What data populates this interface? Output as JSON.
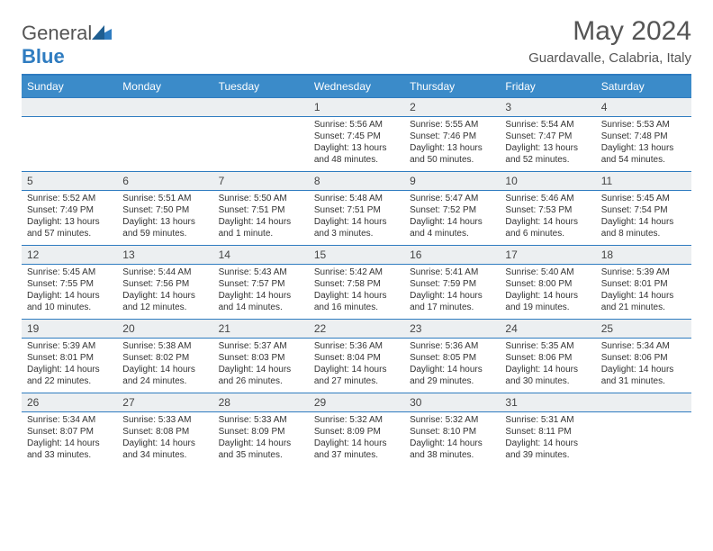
{
  "brand": {
    "part1": "General",
    "part2": "Blue"
  },
  "title": "May 2024",
  "location": "Guardavalle, Calabria, Italy",
  "colors": {
    "header_bg": "#3b8bc9",
    "rule": "#2f7cc0",
    "daynum_bg": "#eceff1",
    "text": "#333333",
    "title_text": "#555555"
  },
  "day_headers": [
    "Sunday",
    "Monday",
    "Tuesday",
    "Wednesday",
    "Thursday",
    "Friday",
    "Saturday"
  ],
  "weeks": [
    [
      null,
      null,
      null,
      {
        "n": "1",
        "sunrise": "5:56 AM",
        "sunset": "7:45 PM",
        "dl1": "Daylight: 13 hours",
        "dl2": "and 48 minutes."
      },
      {
        "n": "2",
        "sunrise": "5:55 AM",
        "sunset": "7:46 PM",
        "dl1": "Daylight: 13 hours",
        "dl2": "and 50 minutes."
      },
      {
        "n": "3",
        "sunrise": "5:54 AM",
        "sunset": "7:47 PM",
        "dl1": "Daylight: 13 hours",
        "dl2": "and 52 minutes."
      },
      {
        "n": "4",
        "sunrise": "5:53 AM",
        "sunset": "7:48 PM",
        "dl1": "Daylight: 13 hours",
        "dl2": "and 54 minutes."
      }
    ],
    [
      {
        "n": "5",
        "sunrise": "5:52 AM",
        "sunset": "7:49 PM",
        "dl1": "Daylight: 13 hours",
        "dl2": "and 57 minutes."
      },
      {
        "n": "6",
        "sunrise": "5:51 AM",
        "sunset": "7:50 PM",
        "dl1": "Daylight: 13 hours",
        "dl2": "and 59 minutes."
      },
      {
        "n": "7",
        "sunrise": "5:50 AM",
        "sunset": "7:51 PM",
        "dl1": "Daylight: 14 hours",
        "dl2": "and 1 minute."
      },
      {
        "n": "8",
        "sunrise": "5:48 AM",
        "sunset": "7:51 PM",
        "dl1": "Daylight: 14 hours",
        "dl2": "and 3 minutes."
      },
      {
        "n": "9",
        "sunrise": "5:47 AM",
        "sunset": "7:52 PM",
        "dl1": "Daylight: 14 hours",
        "dl2": "and 4 minutes."
      },
      {
        "n": "10",
        "sunrise": "5:46 AM",
        "sunset": "7:53 PM",
        "dl1": "Daylight: 14 hours",
        "dl2": "and 6 minutes."
      },
      {
        "n": "11",
        "sunrise": "5:45 AM",
        "sunset": "7:54 PM",
        "dl1": "Daylight: 14 hours",
        "dl2": "and 8 minutes."
      }
    ],
    [
      {
        "n": "12",
        "sunrise": "5:45 AM",
        "sunset": "7:55 PM",
        "dl1": "Daylight: 14 hours",
        "dl2": "and 10 minutes."
      },
      {
        "n": "13",
        "sunrise": "5:44 AM",
        "sunset": "7:56 PM",
        "dl1": "Daylight: 14 hours",
        "dl2": "and 12 minutes."
      },
      {
        "n": "14",
        "sunrise": "5:43 AM",
        "sunset": "7:57 PM",
        "dl1": "Daylight: 14 hours",
        "dl2": "and 14 minutes."
      },
      {
        "n": "15",
        "sunrise": "5:42 AM",
        "sunset": "7:58 PM",
        "dl1": "Daylight: 14 hours",
        "dl2": "and 16 minutes."
      },
      {
        "n": "16",
        "sunrise": "5:41 AM",
        "sunset": "7:59 PM",
        "dl1": "Daylight: 14 hours",
        "dl2": "and 17 minutes."
      },
      {
        "n": "17",
        "sunrise": "5:40 AM",
        "sunset": "8:00 PM",
        "dl1": "Daylight: 14 hours",
        "dl2": "and 19 minutes."
      },
      {
        "n": "18",
        "sunrise": "5:39 AM",
        "sunset": "8:01 PM",
        "dl1": "Daylight: 14 hours",
        "dl2": "and 21 minutes."
      }
    ],
    [
      {
        "n": "19",
        "sunrise": "5:39 AM",
        "sunset": "8:01 PM",
        "dl1": "Daylight: 14 hours",
        "dl2": "and 22 minutes."
      },
      {
        "n": "20",
        "sunrise": "5:38 AM",
        "sunset": "8:02 PM",
        "dl1": "Daylight: 14 hours",
        "dl2": "and 24 minutes."
      },
      {
        "n": "21",
        "sunrise": "5:37 AM",
        "sunset": "8:03 PM",
        "dl1": "Daylight: 14 hours",
        "dl2": "and 26 minutes."
      },
      {
        "n": "22",
        "sunrise": "5:36 AM",
        "sunset": "8:04 PM",
        "dl1": "Daylight: 14 hours",
        "dl2": "and 27 minutes."
      },
      {
        "n": "23",
        "sunrise": "5:36 AM",
        "sunset": "8:05 PM",
        "dl1": "Daylight: 14 hours",
        "dl2": "and 29 minutes."
      },
      {
        "n": "24",
        "sunrise": "5:35 AM",
        "sunset": "8:06 PM",
        "dl1": "Daylight: 14 hours",
        "dl2": "and 30 minutes."
      },
      {
        "n": "25",
        "sunrise": "5:34 AM",
        "sunset": "8:06 PM",
        "dl1": "Daylight: 14 hours",
        "dl2": "and 31 minutes."
      }
    ],
    [
      {
        "n": "26",
        "sunrise": "5:34 AM",
        "sunset": "8:07 PM",
        "dl1": "Daylight: 14 hours",
        "dl2": "and 33 minutes."
      },
      {
        "n": "27",
        "sunrise": "5:33 AM",
        "sunset": "8:08 PM",
        "dl1": "Daylight: 14 hours",
        "dl2": "and 34 minutes."
      },
      {
        "n": "28",
        "sunrise": "5:33 AM",
        "sunset": "8:09 PM",
        "dl1": "Daylight: 14 hours",
        "dl2": "and 35 minutes."
      },
      {
        "n": "29",
        "sunrise": "5:32 AM",
        "sunset": "8:09 PM",
        "dl1": "Daylight: 14 hours",
        "dl2": "and 37 minutes."
      },
      {
        "n": "30",
        "sunrise": "5:32 AM",
        "sunset": "8:10 PM",
        "dl1": "Daylight: 14 hours",
        "dl2": "and 38 minutes."
      },
      {
        "n": "31",
        "sunrise": "5:31 AM",
        "sunset": "8:11 PM",
        "dl1": "Daylight: 14 hours",
        "dl2": "and 39 minutes."
      },
      null
    ]
  ],
  "labels": {
    "sunrise_prefix": "Sunrise: ",
    "sunset_prefix": "Sunset: "
  }
}
